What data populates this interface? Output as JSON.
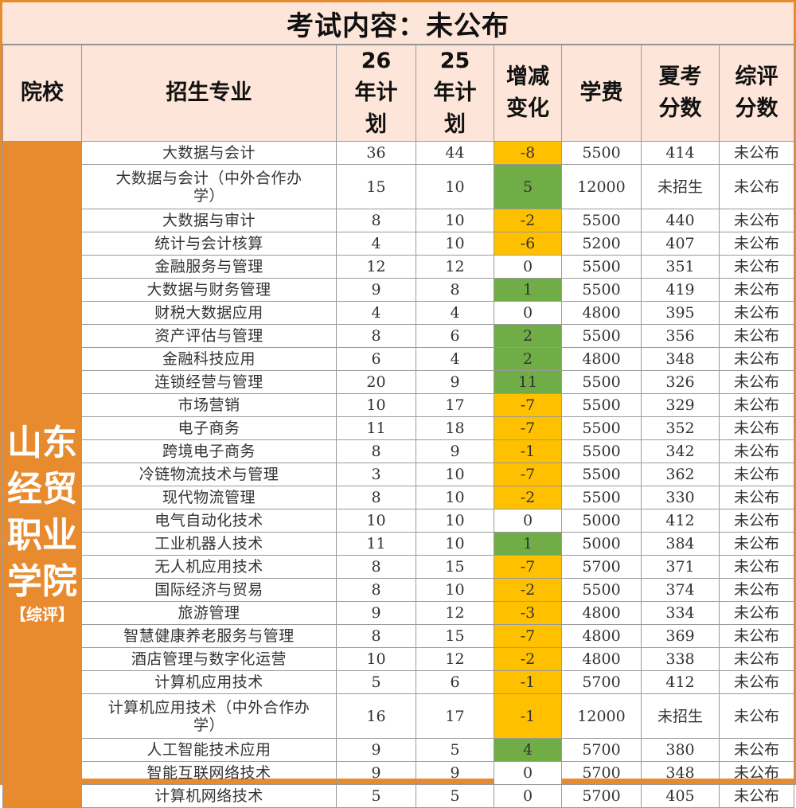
{
  "title": "考试内容：未公布",
  "headers": {
    "school": "院校",
    "major": "招生专业",
    "plan26": "26年计划",
    "plan25": "25年计划",
    "change": "增减变化",
    "fee": "学费",
    "summer_score": "夏考分数",
    "comp_score": "综评分数"
  },
  "school": {
    "name": "山东经贸职业学院",
    "tag": "【综评】"
  },
  "rows": [
    {
      "major": "大数据与会计",
      "plan26": "36",
      "plan25": "44",
      "change": "-8",
      "fee": "5500",
      "summer": "414",
      "comp": "未公布"
    },
    {
      "major": "大数据与会计（中外合作办学）",
      "plan26": "15",
      "plan25": "10",
      "change": "5",
      "fee": "12000",
      "summer": "未招生",
      "comp": "未公布"
    },
    {
      "major": "大数据与审计",
      "plan26": "8",
      "plan25": "10",
      "change": "-2",
      "fee": "5500",
      "summer": "440",
      "comp": "未公布"
    },
    {
      "major": "统计与会计核算",
      "plan26": "4",
      "plan25": "10",
      "change": "-6",
      "fee": "5200",
      "summer": "407",
      "comp": "未公布"
    },
    {
      "major": "金融服务与管理",
      "plan26": "12",
      "plan25": "12",
      "change": "0",
      "fee": "5500",
      "summer": "351",
      "comp": "未公布"
    },
    {
      "major": "大数据与财务管理",
      "plan26": "9",
      "plan25": "8",
      "change": "1",
      "fee": "5500",
      "summer": "419",
      "comp": "未公布"
    },
    {
      "major": "财税大数据应用",
      "plan26": "4",
      "plan25": "4",
      "change": "0",
      "fee": "4800",
      "summer": "395",
      "comp": "未公布"
    },
    {
      "major": "资产评估与管理",
      "plan26": "8",
      "plan25": "6",
      "change": "2",
      "fee": "5500",
      "summer": "356",
      "comp": "未公布"
    },
    {
      "major": "金融科技应用",
      "plan26": "6",
      "plan25": "4",
      "change": "2",
      "fee": "4800",
      "summer": "348",
      "comp": "未公布"
    },
    {
      "major": "连锁经营与管理",
      "plan26": "20",
      "plan25": "9",
      "change": "11",
      "fee": "5500",
      "summer": "326",
      "comp": "未公布"
    },
    {
      "major": "市场营销",
      "plan26": "10",
      "plan25": "17",
      "change": "-7",
      "fee": "5500",
      "summer": "329",
      "comp": "未公布"
    },
    {
      "major": "电子商务",
      "plan26": "11",
      "plan25": "18",
      "change": "-7",
      "fee": "5500",
      "summer": "352",
      "comp": "未公布"
    },
    {
      "major": "跨境电子商务",
      "plan26": "8",
      "plan25": "9",
      "change": "-1",
      "fee": "5500",
      "summer": "342",
      "comp": "未公布"
    },
    {
      "major": "冷链物流技术与管理",
      "plan26": "3",
      "plan25": "10",
      "change": "-7",
      "fee": "5500",
      "summer": "362",
      "comp": "未公布"
    },
    {
      "major": "现代物流管理",
      "plan26": "8",
      "plan25": "10",
      "change": "-2",
      "fee": "5500",
      "summer": "330",
      "comp": "未公布"
    },
    {
      "major": "电气自动化技术",
      "plan26": "10",
      "plan25": "10",
      "change": "0",
      "fee": "5000",
      "summer": "412",
      "comp": "未公布"
    },
    {
      "major": "工业机器人技术",
      "plan26": "11",
      "plan25": "10",
      "change": "1",
      "fee": "5000",
      "summer": "384",
      "comp": "未公布"
    },
    {
      "major": "无人机应用技术",
      "plan26": "8",
      "plan25": "15",
      "change": "-7",
      "fee": "5700",
      "summer": "371",
      "comp": "未公布"
    },
    {
      "major": "国际经济与贸易",
      "plan26": "8",
      "plan25": "10",
      "change": "-2",
      "fee": "5500",
      "summer": "374",
      "comp": "未公布"
    },
    {
      "major": "旅游管理",
      "plan26": "9",
      "plan25": "12",
      "change": "-3",
      "fee": "4800",
      "summer": "334",
      "comp": "未公布"
    },
    {
      "major": "智慧健康养老服务与管理",
      "plan26": "8",
      "plan25": "15",
      "change": "-7",
      "fee": "4800",
      "summer": "369",
      "comp": "未公布"
    },
    {
      "major": "酒店管理与数字化运营",
      "plan26": "10",
      "plan25": "12",
      "change": "-2",
      "fee": "4800",
      "summer": "338",
      "comp": "未公布"
    },
    {
      "major": "计算机应用技术",
      "plan26": "5",
      "plan25": "6",
      "change": "-1",
      "fee": "5700",
      "summer": "412",
      "comp": "未公布"
    },
    {
      "major": "计算机应用技术（中外合作办学）",
      "plan26": "16",
      "plan25": "17",
      "change": "-1",
      "fee": "12000",
      "summer": "未招生",
      "comp": "未公布"
    },
    {
      "major": "人工智能技术应用",
      "plan26": "9",
      "plan25": "5",
      "change": "4",
      "fee": "5700",
      "summer": "380",
      "comp": "未公布"
    },
    {
      "major": "智能互联网络技术",
      "plan26": "9",
      "plan25": "9",
      "change": "0",
      "fee": "5700",
      "summer": "348",
      "comp": "未公布"
    },
    {
      "major": "计算机网络技术",
      "plan26": "5",
      "plan25": "5",
      "change": "0",
      "fee": "5700",
      "summer": "405",
      "comp": "未公布"
    }
  ],
  "colors": {
    "accent_orange": "#e88a2e",
    "header_bg": "#fde6d9",
    "decrease": "#ffc000",
    "increase": "#70ad47",
    "no_change": "#ffffff"
  }
}
